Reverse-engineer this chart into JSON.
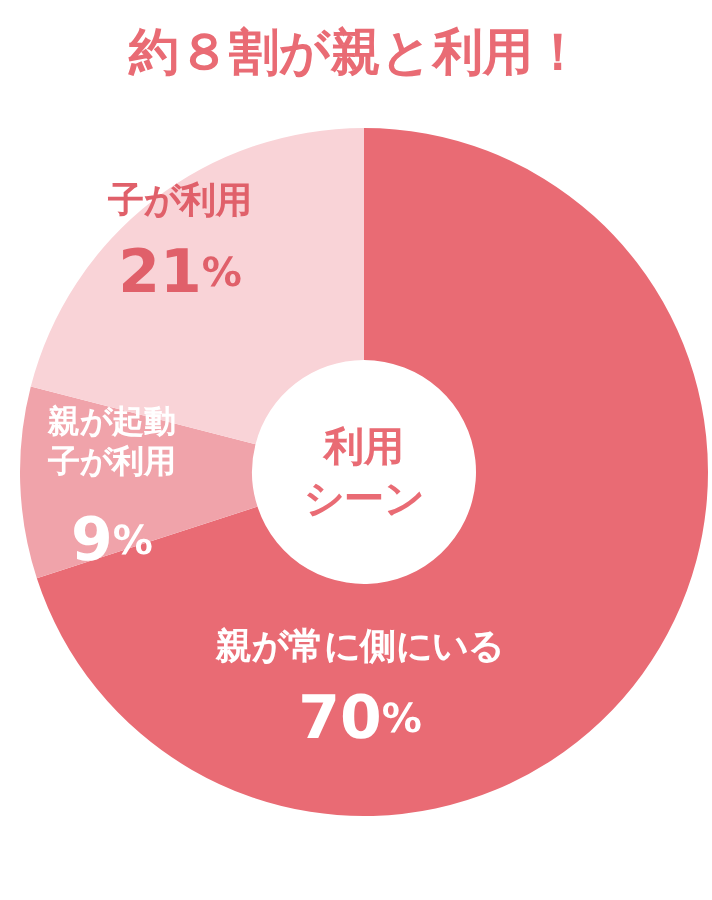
{
  "chart_data": {
    "type": "donut",
    "title": "約８割が親と利用！",
    "categories": [
      "親が常に側にいる",
      "親が起動子が利用",
      "子が利用"
    ],
    "values": [
      70,
      9,
      21
    ],
    "colors": [
      "#e96b74",
      "#f0a3aa",
      "#f9d3d7"
    ],
    "value_labels": [
      "70%",
      "9%",
      "21%"
    ],
    "annotations": [
      "利用シーン"
    ]
  }
}
